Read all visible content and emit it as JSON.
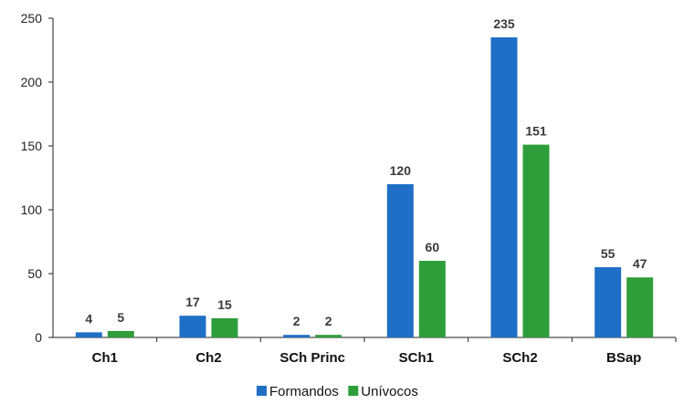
{
  "chart_data": {
    "type": "bar",
    "categories": [
      "Ch1",
      "Ch2",
      "SCh Princ",
      "SCh1",
      "SCh2",
      "BSap"
    ],
    "series": [
      {
        "name": "Formandos",
        "values": [
          4,
          17,
          2,
          120,
          235,
          55
        ],
        "color": "#1f6fc6"
      },
      {
        "name": "Unívocos",
        "values": [
          5,
          15,
          2,
          60,
          151,
          47
        ],
        "color": "#2e9e3a"
      }
    ],
    "yticks": [
      0,
      50,
      100,
      150,
      200,
      250
    ],
    "ylim": [
      0,
      250
    ],
    "title": "",
    "xlabel": "",
    "ylabel": "",
    "grid": false,
    "legend_position": "bottom"
  }
}
